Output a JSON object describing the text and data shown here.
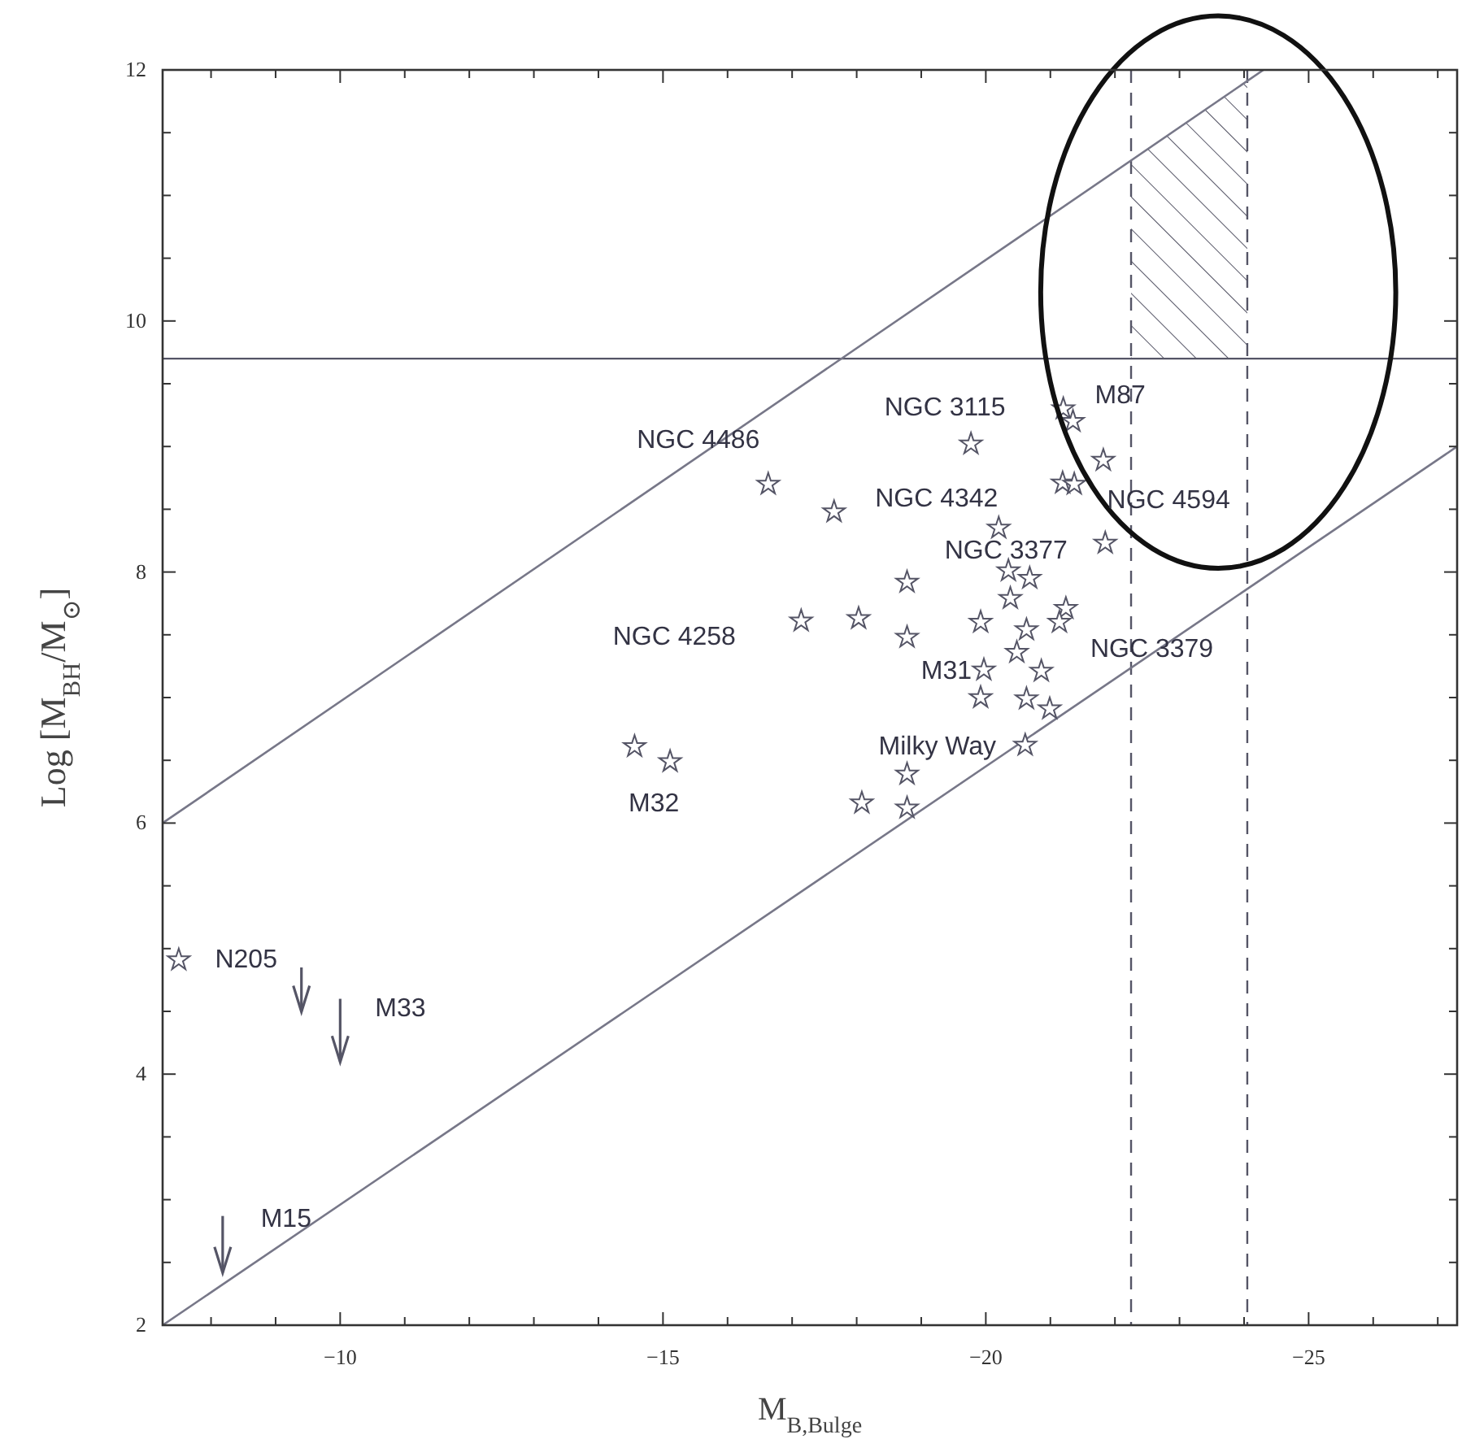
{
  "chart_data": {
    "type": "scatter",
    "xlabel": "M$_{B,Bulge}$",
    "ylabel": "Log [M$_{BH}$/M$_{⊙}$]",
    "xlim": [
      -7.25,
      -27.3
    ],
    "ylim": [
      2,
      12
    ],
    "xticks": [
      {
        "value": -8,
        "label": null
      },
      {
        "value": -9,
        "label": null
      },
      -10,
      {
        "value": -11,
        "label": null
      },
      {
        "value": -12,
        "label": null
      },
      {
        "value": -13,
        "label": null
      },
      {
        "value": -14,
        "label": null
      },
      -15,
      {
        "value": -16,
        "label": null
      },
      {
        "value": -17,
        "label": null
      },
      {
        "value": -18,
        "label": null
      },
      {
        "value": -19,
        "label": null
      },
      -20,
      {
        "value": -21,
        "label": null
      },
      {
        "value": -22,
        "label": null
      },
      {
        "value": -23,
        "label": null
      },
      {
        "value": -24,
        "label": null
      },
      -25,
      {
        "value": -26,
        "label": null
      },
      {
        "value": -27,
        "label": null
      }
    ],
    "yticks": [
      2,
      {
        "value": 2.5,
        "label": null
      },
      {
        "value": 3,
        "label": null
      },
      {
        "value": 3.5,
        "label": null
      },
      4,
      {
        "value": 4.5,
        "label": null
      },
      {
        "value": 5,
        "label": null
      },
      {
        "value": 5.5,
        "label": null
      },
      6,
      {
        "value": 6.5,
        "label": null
      },
      {
        "value": 7,
        "label": null
      },
      {
        "value": 7.5,
        "label": null
      },
      8,
      {
        "value": 8.5,
        "label": null
      },
      {
        "value": 9,
        "label": null
      },
      {
        "value": 9.5,
        "label": null
      },
      10,
      {
        "value": 10.5,
        "label": null
      },
      {
        "value": 11,
        "label": null
      },
      {
        "value": 11.5,
        "label": null
      },
      12
    ],
    "grid": false,
    "series": [
      {
        "marker": "star",
        "color": "#555566",
        "x": [
          -16.63,
          -17.65,
          -19.77,
          -21.2,
          -21.35,
          -21.82,
          -21.19,
          -21.37,
          -20.2,
          -21.85,
          -20.35,
          -20.68,
          -18.78,
          -20.38,
          -17.14,
          -18.03,
          -18.78,
          -19.92,
          -20.63,
          -21.24,
          -21.14,
          -20.48,
          -19.97,
          -20.86,
          -19.92,
          -20.63,
          -20.99,
          -20.61,
          -18.78,
          -18.08,
          -18.78,
          -14.56,
          -15.11,
          -7.5
        ],
        "values": [
          8.7,
          8.48,
          9.02,
          9.3,
          9.2,
          8.89,
          8.71,
          8.7,
          8.35,
          8.23,
          8.01,
          7.95,
          7.92,
          7.79,
          7.61,
          7.63,
          7.48,
          7.6,
          7.54,
          7.71,
          7.6,
          7.36,
          7.22,
          7.21,
          7.0,
          6.99,
          6.91,
          6.62,
          6.39,
          6.16,
          6.12,
          6.61,
          6.49,
          4.91
        ]
      },
      {
        "color": "#555566",
        "x": [
          -9.4,
          -10.0,
          -8.18
        ],
        "values": [
          4.6,
          4.2,
          2.52
        ],
        "errors": [
          [
            4.5,
            4.85
          ],
          [
            4.1,
            4.6
          ],
          [
            2.42,
            2.87
          ]
        ]
      },
      {
        "type": "line",
        "color": "#777788",
        "x": [
          -7.25,
          -24.3
        ],
        "values": [
          6,
          12
        ]
      },
      {
        "type": "line",
        "color": "#777788",
        "x": [
          -7.25,
          -27.3
        ],
        "values": [
          2,
          9.0
        ]
      }
    ],
    "ref_lines": [
      {
        "axis": "y",
        "value": 9.7,
        "color": "#555566",
        "line_style": "solid"
      },
      {
        "axis": "x",
        "value": -22.25,
        "color": "#555566",
        "line_style": "dashed"
      },
      {
        "axis": "x",
        "value": -24.05,
        "color": "#555566",
        "line_style": "dashed"
      }
    ],
    "annotations": [
      {
        "text": "NGC 4486",
        "x": -16.63,
        "y": 8.7
      },
      {
        "text": "NGC 3115",
        "x": -19.77,
        "y": 9.02
      },
      {
        "text": "M87",
        "x": -21.2,
        "y": 9.3
      },
      {
        "text": "NGC 4342",
        "x": -17.65,
        "y": 8.48
      },
      {
        "text": "NGC 4594",
        "x": -21.37,
        "y": 8.7
      },
      {
        "text": "NGC 3377",
        "x": -21.85,
        "y": 8.23
      },
      {
        "text": "NGC 4258",
        "x": -17.14,
        "y": 7.61
      },
      {
        "text": "NGC 3379",
        "x": -20.48,
        "y": 7.36
      },
      {
        "text": "M31",
        "x": -19.97,
        "y": 7.22
      },
      {
        "text": "Milky Way",
        "x": -20.61,
        "y": 6.62
      },
      {
        "text": "M32",
        "x": -15.11,
        "y": 6.49
      },
      {
        "text": "N205",
        "x": -9.4,
        "y": 4.6
      },
      {
        "text": "M33",
        "x": -10.0,
        "y": 4.2
      },
      {
        "text": "M15",
        "x": -8.18,
        "y": 2.52
      }
    ]
  }
}
